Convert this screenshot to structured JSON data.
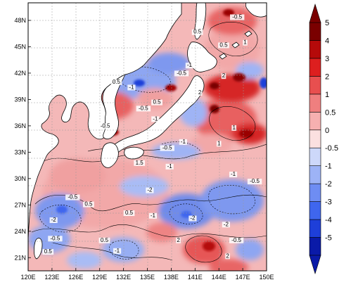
{
  "chart_data": {
    "type": "heatmap",
    "title": "",
    "region": "Northwest Pacific / Sea of Japan / East China Sea",
    "x_ticks": [
      "120E",
      "123E",
      "126E",
      "129E",
      "132E",
      "135E",
      "138E",
      "141E",
      "144E",
      "147E",
      "150E"
    ],
    "y_ticks": [
      "21N",
      "24N",
      "27N",
      "30N",
      "33N",
      "36N",
      "39N",
      "42N",
      "45N",
      "48N"
    ],
    "xlim": [
      120,
      150
    ],
    "ylim": [
      19.5,
      50
    ],
    "colorbar": {
      "levels": [
        -5,
        -4,
        -3,
        -2,
        -1,
        -0.5,
        0,
        0.5,
        1,
        2,
        3,
        4,
        5
      ],
      "labels": [
        "5",
        "4",
        "3",
        "2",
        "1",
        "0.5",
        "0",
        "-0.5",
        "-1",
        "-2",
        "-3",
        "-4",
        "-5"
      ],
      "colors": [
        "#0a1aa8",
        "#1e3fd9",
        "#3f66ee",
        "#6e8df3",
        "#9db3f6",
        "#cdd8fa",
        "#fbe0e0",
        "#f6b0b0",
        "#ef7f7f",
        "#e84f4f",
        "#dd1f1f",
        "#b50a0a",
        "#7a0000"
      ],
      "extend": "both"
    },
    "contour_labels": [
      {
        "text": "-0.5",
        "lon": 146.3,
        "lat": 48.2
      },
      {
        "text": "0.5",
        "lon": 141.3,
        "lat": 46.5
      },
      {
        "text": "0.5",
        "lon": 144.6,
        "lat": 45.0
      },
      {
        "text": "1",
        "lon": 147.3,
        "lat": 45.3
      },
      {
        "text": "-1",
        "lon": 140.3,
        "lat": 42.7
      },
      {
        "text": "-0.5",
        "lon": 139.3,
        "lat": 41.8
      },
      {
        "text": "0.5",
        "lon": 131.1,
        "lat": 40.8
      },
      {
        "text": "-1",
        "lon": 133.0,
        "lat": 40.2
      },
      {
        "text": "2",
        "lon": 144.6,
        "lat": 41.5
      },
      {
        "text": "2",
        "lon": 141.6,
        "lat": 39.6
      },
      {
        "text": "0.5",
        "lon": 136.2,
        "lat": 38.5
      },
      {
        "text": "-0.5",
        "lon": 134.5,
        "lat": 37.8
      },
      {
        "text": "-1",
        "lon": 136.0,
        "lat": 36.6
      },
      {
        "text": "-0.5",
        "lon": 129.7,
        "lat": 35.8
      },
      {
        "text": "1",
        "lon": 145.9,
        "lat": 35.6
      },
      {
        "text": "-1",
        "lon": 139.5,
        "lat": 34.0
      },
      {
        "text": "-0.5",
        "lon": 137.5,
        "lat": 33.3
      },
      {
        "text": "1",
        "lon": 144.0,
        "lat": 33.8
      },
      {
        "text": "1.5",
        "lon": 134.0,
        "lat": 31.6
      },
      {
        "text": "-1",
        "lon": 137.8,
        "lat": 31.2
      },
      {
        "text": "-1",
        "lon": 145.8,
        "lat": 30.3
      },
      {
        "text": "-0.5",
        "lon": 148.5,
        "lat": 29.5
      },
      {
        "text": "-2",
        "lon": 135.3,
        "lat": 28.5
      },
      {
        "text": "-0.5",
        "lon": 125.6,
        "lat": 27.7
      },
      {
        "text": "0.5",
        "lon": 127.6,
        "lat": 26.9
      },
      {
        "text": "0.5",
        "lon": 132.7,
        "lat": 25.9
      },
      {
        "text": "-1",
        "lon": 135.7,
        "lat": 25.6
      },
      {
        "text": "-2",
        "lon": 140.7,
        "lat": 25.3
      },
      {
        "text": "-2",
        "lon": 123.2,
        "lat": 25.1
      },
      {
        "text": "-2",
        "lon": 144.9,
        "lat": 24.6
      },
      {
        "text": "-0.5",
        "lon": 123.4,
        "lat": 23.0
      },
      {
        "text": "0.5",
        "lon": 129.6,
        "lat": 22.8
      },
      {
        "text": "2",
        "lon": 138.9,
        "lat": 22.8
      },
      {
        "text": "-0.5",
        "lon": 146.2,
        "lat": 22.8
      },
      {
        "text": "0.5",
        "lon": 122.5,
        "lat": 21.5
      },
      {
        "text": "-1",
        "lon": 131.2,
        "lat": 21.6
      },
      {
        "text": "2",
        "lon": 145.1,
        "lat": 21.0
      }
    ]
  }
}
